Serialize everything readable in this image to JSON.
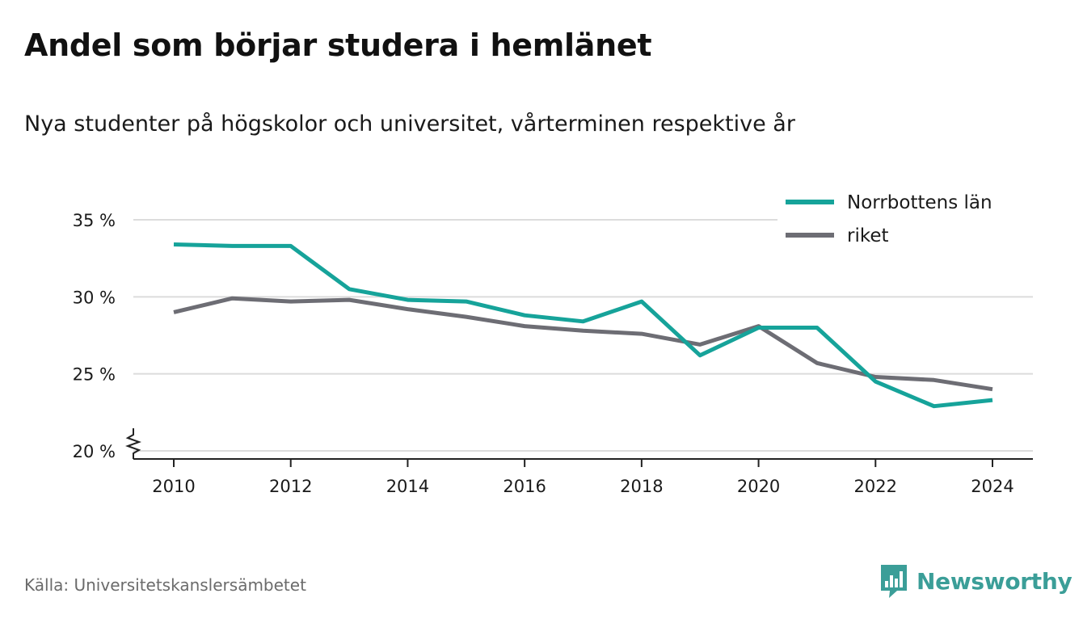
{
  "header": {
    "title": "Andel som börjar studera i hemlänet",
    "subtitle": "Nya studenter på högskolor och universitet, vårterminen respektive år"
  },
  "footer": {
    "source": "Källa: Universitetskanslersämbetet",
    "brand": "Newsworthy",
    "brand_icon": "bar-chart-speech-bubble-icon",
    "brand_color": "#3b9e98"
  },
  "chart_data": {
    "type": "line",
    "x": [
      2010,
      2011,
      2012,
      2013,
      2014,
      2015,
      2016,
      2017,
      2018,
      2019,
      2020,
      2021,
      2022,
      2023,
      2024
    ],
    "series": [
      {
        "name": "Norrbottens län",
        "color": "#16a39a",
        "values": [
          33.4,
          33.3,
          33.3,
          30.5,
          29.8,
          29.7,
          28.8,
          28.4,
          29.7,
          26.2,
          28.0,
          28.0,
          24.5,
          22.9,
          23.3
        ]
      },
      {
        "name": "riket",
        "color": "#6d6d74",
        "values": [
          29.0,
          29.9,
          29.7,
          29.8,
          29.2,
          28.7,
          28.1,
          27.8,
          27.6,
          26.9,
          28.1,
          25.7,
          24.8,
          24.6,
          24.0
        ]
      }
    ],
    "ylim": [
      20,
      35
    ],
    "y_ticks": [
      20,
      25,
      30,
      35
    ],
    "y_tick_labels": [
      "20 %",
      "25 %",
      "30 %",
      "35 %"
    ],
    "x_ticks": [
      2010,
      2012,
      2014,
      2016,
      2018,
      2020,
      2022,
      2024
    ],
    "x_tick_labels": [
      "2010",
      "2012",
      "2014",
      "2016",
      "2018",
      "2020",
      "2022",
      "2024"
    ],
    "axis_break": true,
    "grid": "horizontal",
    "legend_position": "top-right"
  }
}
